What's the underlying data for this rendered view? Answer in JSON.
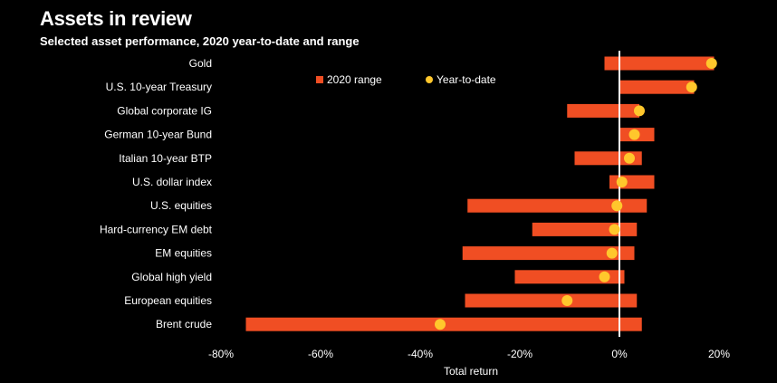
{
  "title": "Assets in review",
  "subtitle": "Selected asset performance, 2020 year-to-date and range",
  "colors": {
    "background": "#000000",
    "range_bar": "#f04e23",
    "ytd_dot": "#ffc72c",
    "zero_line": "#ffffff",
    "text": "#ffffff"
  },
  "chart_data": {
    "type": "bar",
    "orientation": "horizontal",
    "categories": [
      "Gold",
      "U.S. 10-year Treasury",
      "Global corporate IG",
      "German 10-year Bund",
      "Italian 10-year BTP",
      "U.S. dollar index",
      "U.S. equities",
      "Hard-currency EM debt",
      "EM equities",
      "Global high yield",
      "European equities",
      "Brent crude"
    ],
    "series": [
      {
        "name": "2020 range",
        "type": "range",
        "low": [
          -3,
          0,
          -10.5,
          0,
          -9,
          -2,
          -30.5,
          -17.5,
          -31.5,
          -21,
          -31,
          -75
        ],
        "high": [
          19,
          15,
          4,
          7,
          4.5,
          7,
          5.5,
          3.5,
          3,
          1,
          3.5,
          4.5
        ]
      },
      {
        "name": "Year-to-date",
        "type": "point",
        "values": [
          18.5,
          14.5,
          4,
          3,
          2,
          0.5,
          -0.5,
          -1,
          -1.5,
          -3,
          -10.5,
          -36
        ]
      }
    ],
    "xlabel": "Total return",
    "xlim": [
      -80,
      23
    ],
    "xticks": [
      "-80%",
      "-60%",
      "-40%",
      "-20%",
      "0%",
      "20%"
    ],
    "xtick_values": [
      -80,
      -60,
      -40,
      -20,
      0,
      20
    ],
    "legend": [
      "2020 range",
      "Year-to-date"
    ],
    "legend_position": "top-right",
    "grid": false
  }
}
